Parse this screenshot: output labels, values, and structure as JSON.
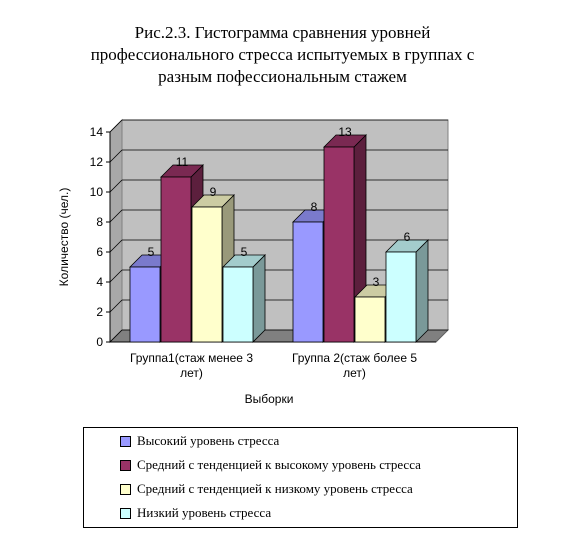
{
  "title_lines": [
    "Рис.2.3. Гистограмма сравнения уровней",
    "профессионального стресса испытуемых в группах с",
    "разным пофессиональным стажем"
  ],
  "chart_data": {
    "type": "bar",
    "title": "Рис.2.3. Гистограмма сравнения уровней профессионального стресса испытуемых в группах с разным пофессиональным стажем",
    "xlabel": "Выборки",
    "ylabel": "Количество (чел.)",
    "ylim": [
      0,
      14
    ],
    "yticks": [
      "0",
      "2",
      "4",
      "6",
      "8",
      "10",
      "12",
      "14"
    ],
    "categories": [
      [
        "Группа1(стаж менее 3",
        "лет)"
      ],
      [
        "Группа 2(стаж более 5",
        "лет)"
      ]
    ],
    "series": [
      {
        "name": "Высокий уровень стресса",
        "values": [
          5,
          8
        ],
        "color": "#9999ff"
      },
      {
        "name": "Средний с тенденцией к высокому уровень стресса",
        "values": [
          11,
          13
        ],
        "color": "#993366"
      },
      {
        "name": "Средний с тенденцией к низкому уровень стресса",
        "values": [
          9,
          3
        ],
        "color": "#ffffcc"
      },
      {
        "name": "Низкий уровень стресса",
        "values": [
          5,
          6
        ],
        "color": "#ccffff"
      }
    ],
    "grid": true,
    "wall_color": "#c0c0c0",
    "legend_position": "bottom"
  }
}
